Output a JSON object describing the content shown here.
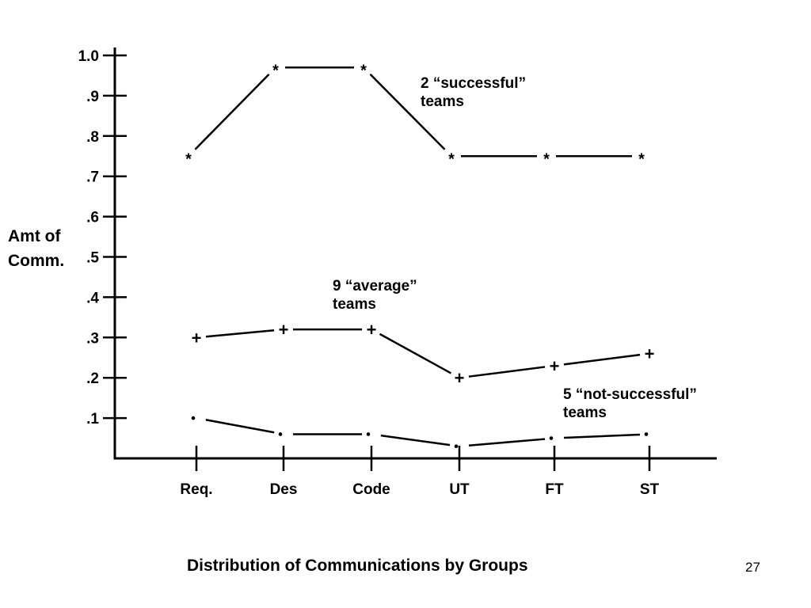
{
  "slide": {
    "title": "Distribution of Communications by Groups",
    "page_number": "27"
  },
  "chart_data": {
    "type": "line",
    "ylabel_lines": [
      "Amt of",
      "Comm."
    ],
    "xlabel": "",
    "categories": [
      "Req.",
      "Des",
      "Code",
      "UT",
      "FT",
      "ST"
    ],
    "ylim": [
      0,
      1.0
    ],
    "y_ticks": [
      ".1",
      ".2",
      ".3",
      ".4",
      ".5",
      ".6",
      ".7",
      ".8",
      ".9",
      "1.0"
    ],
    "grid": false,
    "series": [
      {
        "marker": "*",
        "values": [
          0.75,
          0.97,
          0.97,
          0.75,
          0.75,
          0.75
        ],
        "label_lines": [
          "2 “successful”",
          "teams"
        ]
      },
      {
        "marker": "+",
        "values": [
          0.3,
          0.32,
          0.32,
          0.2,
          0.23,
          0.26
        ],
        "label_lines": [
          "9 “average”",
          "teams"
        ]
      },
      {
        "marker": ".",
        "values": [
          0.1,
          0.06,
          0.06,
          0.03,
          0.05,
          0.06
        ],
        "label_lines": [
          "5 “not-successful”",
          "teams"
        ]
      }
    ],
    "color": "#000000"
  }
}
